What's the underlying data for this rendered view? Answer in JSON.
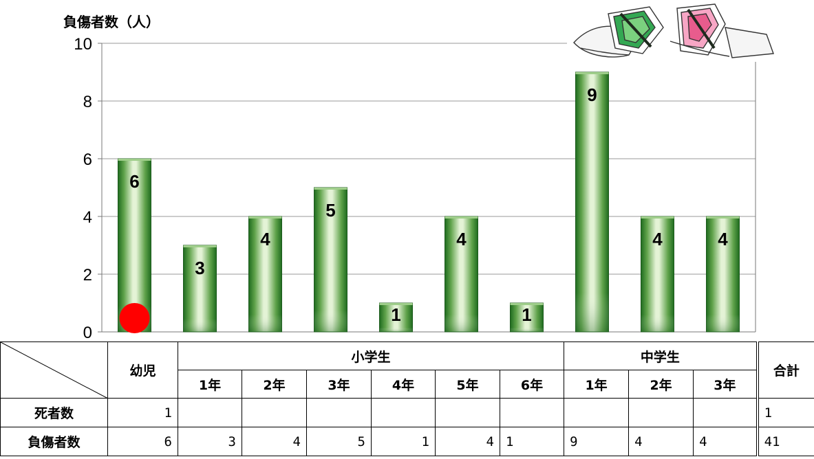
{
  "chart_data": {
    "type": "bar",
    "ylabel": "負傷者数（人）",
    "categories": [
      "幼児",
      "1年",
      "2年",
      "3年",
      "4年",
      "5年",
      "6年",
      "1年",
      "2年",
      "3年"
    ],
    "values": [
      6,
      3,
      4,
      5,
      1,
      4,
      1,
      9,
      4,
      4
    ],
    "deaths": [
      1,
      0,
      0,
      0,
      0,
      0,
      0,
      0,
      0,
      0
    ],
    "ylim": [
      0,
      10
    ],
    "yticks": [
      "0",
      "2",
      "4",
      "6",
      "8",
      "10"
    ],
    "grid": true,
    "colors": {
      "bar_dark": "#1f6b1f",
      "bar_light": "#dff0d0",
      "death_marker": "#ff0000"
    }
  },
  "table": {
    "headers": {
      "preschool": "幼児",
      "elementary": "小学生",
      "junior_high": "中学生",
      "total": "合計",
      "elem_grades": [
        "1年",
        "2年",
        "3年",
        "4年",
        "5年",
        "6年"
      ],
      "jh_grades": [
        "1年",
        "2年",
        "3年"
      ]
    },
    "rows": {
      "death_label": "死者数",
      "deaths": [
        "1",
        "",
        "",
        "",
        "",
        "",
        "",
        "",
        "",
        ""
      ],
      "death_total": "1",
      "injury_label": "負傷者数",
      "injuries": [
        "6",
        "3",
        "4",
        "5",
        "1",
        "4",
        "1",
        "9",
        "4",
        "4"
      ],
      "injury_total": "41"
    }
  }
}
